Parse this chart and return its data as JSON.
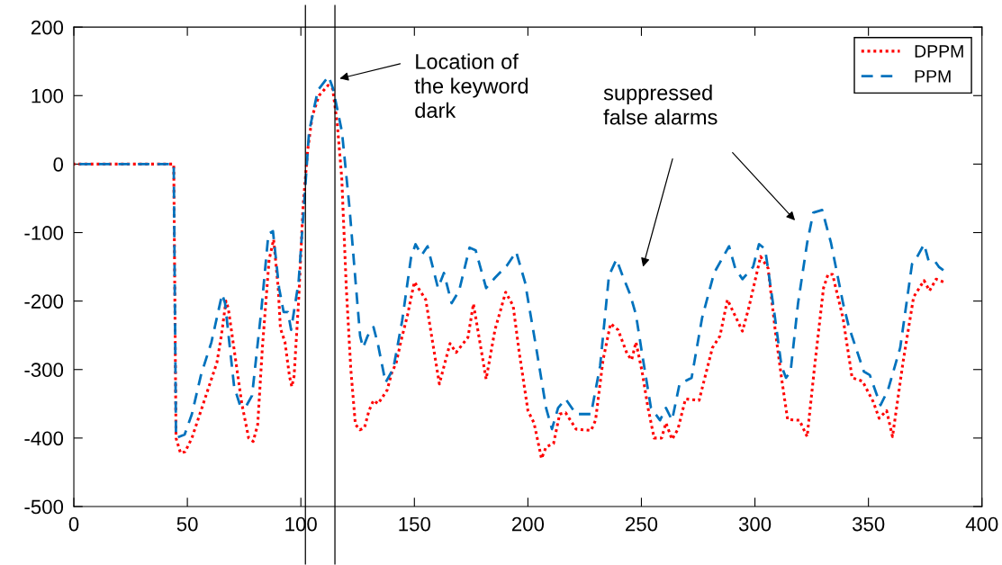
{
  "chart_data": {
    "type": "line",
    "xlim": [
      0,
      400
    ],
    "ylim": [
      -500,
      200
    ],
    "xticks": [
      0,
      50,
      100,
      150,
      200,
      250,
      300,
      350,
      400
    ],
    "yticks": [
      -500,
      -400,
      -300,
      -200,
      -100,
      0,
      100,
      200
    ],
    "grid": false,
    "legend": "top right",
    "series": [
      {
        "name": "DPPM",
        "color": "#ff0000",
        "line_style": "dotted",
        "x": [
          0,
          44,
          45,
          47,
          49,
          52,
          56,
          60,
          63,
          65,
          67,
          68,
          71,
          74,
          77,
          79,
          81,
          83,
          86,
          88,
          90,
          91,
          93,
          95,
          96,
          97,
          99,
          101,
          103,
          105,
          108,
          112,
          114,
          116,
          118,
          120,
          122,
          124,
          126,
          128,
          130,
          132,
          134,
          136,
          138,
          140,
          142,
          144,
          147,
          150,
          155,
          161,
          165.7,
          168.4,
          173.6,
          176,
          181.6,
          185.5,
          190.2,
          193.5,
          196.1,
          200,
          202.7,
          206,
          208,
          211.3,
          214,
          216.6,
          221.2,
          227.8,
          229.8,
          233.1,
          236.4,
          239.7,
          243.7,
          245.7,
          247.6,
          250.3,
          252.9,
          255.6,
          258.9,
          260.8,
          263.5,
          266.1,
          269.4,
          275.4,
          281.3,
          284.6,
          287.9,
          294.5,
          297.2,
          302.5,
          305.8,
          309.1,
          311.7,
          314.4,
          319.6,
          323,
          326.3,
          330.2,
          332.2,
          334.2,
          338.8,
          342.8,
          347.4,
          352.1,
          354.7,
          358,
          360.6,
          365.2,
          369.9,
          374.5,
          376.9,
          379.8,
          383
        ],
        "values": [
          0,
          0,
          -400,
          -422,
          -420,
          -400,
          -360,
          -320,
          -290,
          -250,
          -200,
          -210,
          -280,
          -350,
          -400,
          -405,
          -380,
          -270,
          -140,
          -110,
          -180,
          -240,
          -260,
          -310,
          -325,
          -310,
          -200,
          -60,
          20,
          70,
          100,
          115,
          110,
          60,
          -20,
          -180,
          -300,
          -380,
          -388,
          -385,
          -360,
          -345,
          -350,
          -340,
          -330,
          -305,
          -290,
          -260,
          -220,
          -172,
          -198,
          -321,
          -262,
          -275,
          -253,
          -204,
          -314,
          -242,
          -187,
          -207,
          -273,
          -360,
          -378,
          -430,
          -413,
          -408,
          -365,
          -363,
          -387,
          -389,
          -374,
          -286,
          -233,
          -242,
          -277,
          -286,
          -260,
          -303,
          -356,
          -400,
          -400,
          -378,
          -402,
          -387,
          -343,
          -345,
          -268,
          -251,
          -198,
          -244,
          -211,
          -135,
          -152,
          -247,
          -312,
          -373,
          -374,
          -398,
          -295,
          -181,
          -161,
          -161,
          -225,
          -312,
          -317,
          -347,
          -371,
          -360,
          -398,
          -290,
          -194,
          -170,
          -185,
          -168,
          -172
        ]
      },
      {
        "name": "PPM",
        "color": "#0072bd",
        "line_style": "dashed",
        "x": [
          0,
          44,
          45,
          48.8,
          52,
          56,
          60.6,
          65.3,
          66.6,
          70.6,
          73.2,
          75.8,
          78.5,
          82.5,
          85.7,
          87.7,
          90.4,
          92.4,
          94.3,
          95.7,
          99,
          101.6,
          103.6,
          107.5,
          112.2,
          114.2,
          118.1,
          121.4,
          124.1,
          126.1,
          127.4,
          129.4,
          132,
          134,
          137.3,
          140.7,
          144.6,
          148.5,
          150.5,
          153.2,
          155.8,
          160.4,
          163,
          166.4,
          169.7,
          174.3,
          177,
          181.6,
          185.5,
          190.8,
          194.8,
          198.7,
          203.9,
          208,
          210.6,
          213.3,
          216.6,
          221.2,
          227.8,
          231.8,
          235.7,
          239,
          241.7,
          245,
          247.6,
          250.3,
          254.2,
          258.2,
          260.8,
          263.5,
          266.8,
          272.1,
          276.7,
          282,
          288.6,
          291.3,
          294.5,
          299.2,
          301.8,
          304.5,
          308.5,
          311.7,
          313.7,
          315.7,
          319,
          323,
          325.7,
          329.6,
          333.5,
          338.8,
          341.4,
          348,
          350.6,
          355.3,
          358.6,
          364,
          369.2,
          371.2,
          374.5,
          376.5,
          379.1,
          381,
          383
        ],
        "values": [
          0,
          0,
          -400,
          -395,
          -365,
          -308,
          -260,
          -190,
          -203,
          -325,
          -352,
          -354,
          -338,
          -216,
          -102,
          -98,
          -181,
          -216,
          -216,
          -242,
          -172,
          -50,
          47,
          108,
          128,
          110,
          47,
          -63,
          -172,
          -251,
          -268,
          -251,
          -238,
          -264,
          -319,
          -299,
          -229,
          -137,
          -117,
          -133,
          -120,
          -181,
          -159,
          -203,
          -185,
          -122,
          -126,
          -181,
          -166,
          -148,
          -128,
          -172,
          -273,
          -356,
          -387,
          -356,
          -343,
          -365,
          -365,
          -295,
          -163,
          -139,
          -163,
          -190,
          -220,
          -277,
          -356,
          -374,
          -356,
          -374,
          -321,
          -312,
          -225,
          -159,
          -120,
          -152,
          -168,
          -150,
          -117,
          -124,
          -216,
          -295,
          -312,
          -303,
          -203,
          -115,
          -71,
          -67,
          -115,
          -203,
          -238,
          -303,
          -308,
          -352,
          -330,
          -268,
          -146,
          -137,
          -117,
          -141,
          -141,
          -150,
          -155
        ]
      }
    ],
    "ref_lines": [
      {
        "axis": "x",
        "value": 102,
        "color": "#000000"
      },
      {
        "axis": "x",
        "value": 115,
        "color": "#000000"
      }
    ],
    "annotations": [
      {
        "text": "Location of\nthe keyword\ndark",
        "x": 116,
        "y": 124
      },
      "suppressed\nfalse alarms"
    ]
  }
}
